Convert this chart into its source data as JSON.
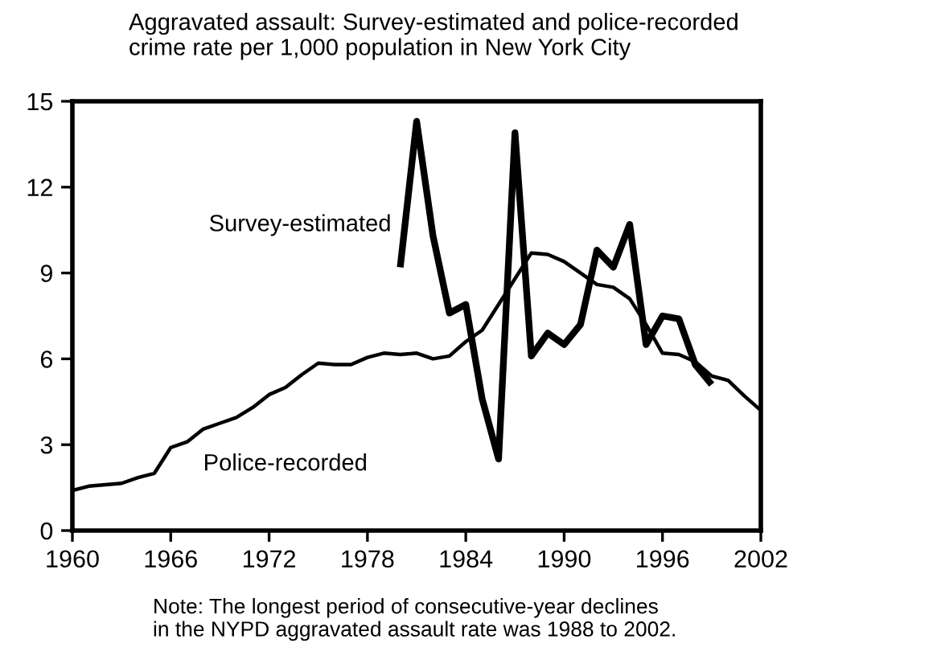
{
  "chart_data": {
    "type": "line",
    "title": "Aggravated assault: Survey-estimated and police-recorded\ncrime rate per 1,000 population in New York City",
    "x": [
      1960,
      1961,
      1962,
      1963,
      1964,
      1965,
      1966,
      1967,
      1968,
      1969,
      1970,
      1971,
      1972,
      1973,
      1974,
      1975,
      1976,
      1977,
      1978,
      1979,
      1980,
      1981,
      1982,
      1983,
      1984,
      1985,
      1986,
      1987,
      1988,
      1989,
      1990,
      1991,
      1992,
      1993,
      1994,
      1995,
      1996,
      1997,
      1998,
      1999,
      2000,
      2001,
      2002
    ],
    "series": [
      {
        "name": "Survey-estimated",
        "color": "#000000",
        "x": [
          1980,
          1981,
          1982,
          1983,
          1984,
          1985,
          1986,
          1987,
          1988,
          1989,
          1990,
          1991,
          1992,
          1993,
          1994,
          1995,
          1996,
          1997,
          1998,
          1999
        ],
        "values": [
          9.2,
          14.3,
          10.3,
          7.6,
          7.9,
          4.6,
          2.5,
          13.9,
          6.1,
          6.9,
          6.5,
          7.2,
          9.8,
          9.2,
          10.7,
          6.5,
          7.5,
          7.4,
          5.8,
          5.1
        ]
      },
      {
        "name": "Police-recorded",
        "color": "#000000",
        "values": [
          1.4,
          1.55,
          1.6,
          1.65,
          1.85,
          2.0,
          2.9,
          3.1,
          3.55,
          3.75,
          3.95,
          4.3,
          4.75,
          5.0,
          5.45,
          5.85,
          5.8,
          5.8,
          6.05,
          6.2,
          6.15,
          6.2,
          6.0,
          6.1,
          6.6,
          7.0,
          7.9,
          8.8,
          9.7,
          9.65,
          9.4,
          9.0,
          8.6,
          8.5,
          8.1,
          7.2,
          6.2,
          6.15,
          5.9,
          5.4,
          5.25,
          4.7,
          4.2
        ]
      }
    ],
    "xlim": [
      1960,
      2002
    ],
    "xticks": [
      1960,
      1966,
      1972,
      1978,
      1984,
      1990,
      1996,
      2002
    ],
    "ylim": [
      0,
      15
    ],
    "yticks": [
      0,
      3,
      6,
      9,
      12,
      15
    ],
    "grid": false,
    "legend": false,
    "marker": "none",
    "line_style": "solid",
    "annotations": [
      "Note: The longest period of consecutive-year declines\nin the NYPD aggravated assault rate was 1988 to 2002."
    ]
  }
}
